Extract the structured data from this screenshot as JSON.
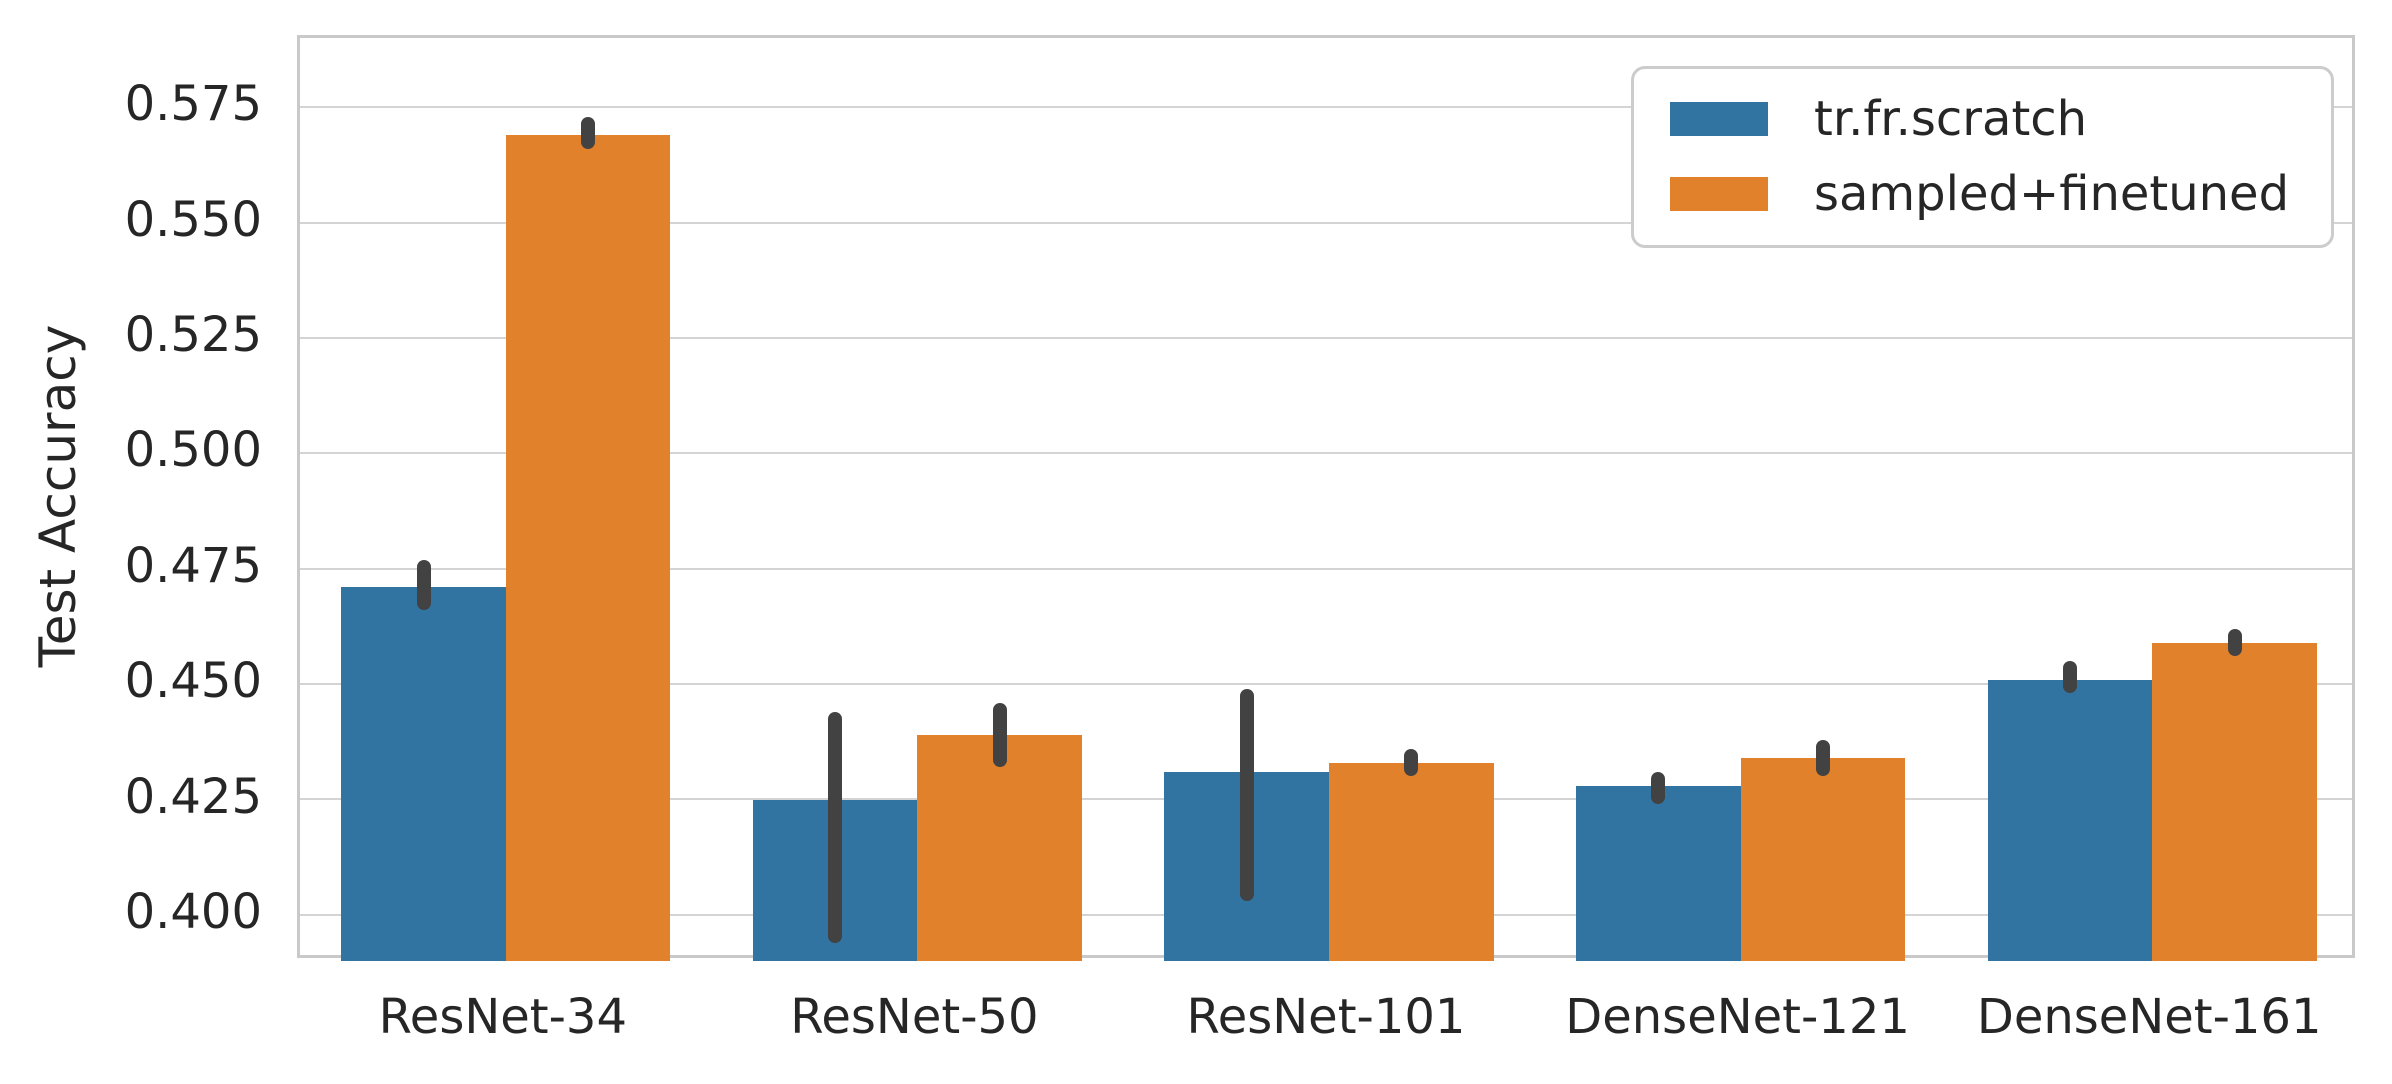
{
  "figure": {
    "ylabel": "Test Accuracy"
  },
  "chart_data": {
    "type": "bar",
    "title": "",
    "xlabel": "",
    "ylabel": "Test Accuracy",
    "categories": [
      "ResNet-34",
      "ResNet-50",
      "ResNet-101",
      "DenseNet-121",
      "DenseNet-161"
    ],
    "series": [
      {
        "name": "tr.fr.scratch",
        "color": "#3274a1",
        "values": [
          0.471,
          0.425,
          0.431,
          0.428,
          0.451
        ],
        "err_low": [
          0.466,
          0.394,
          0.403,
          0.424,
          0.448
        ],
        "err_high": [
          0.477,
          0.444,
          0.449,
          0.431,
          0.455
        ]
      },
      {
        "name": "sampled+finetuned",
        "color": "#e1812c",
        "values": [
          0.569,
          0.439,
          0.433,
          0.434,
          0.459
        ],
        "err_low": [
          0.566,
          0.432,
          0.43,
          0.43,
          0.456
        ],
        "err_high": [
          0.573,
          0.446,
          0.436,
          0.438,
          0.462
        ]
      }
    ],
    "ylim": [
      0.39,
      0.59
    ],
    "yticks": [
      0.4,
      0.425,
      0.45,
      0.475,
      0.5,
      0.525,
      0.55,
      0.575
    ],
    "ytick_labels": [
      "0.400",
      "0.425",
      "0.450",
      "0.475",
      "0.500",
      "0.525",
      "0.550",
      "0.575"
    ],
    "grid": "horizontal",
    "legend_position": "upper right",
    "error_bar_color": "#424242",
    "bar_group_width": 0.8
  }
}
